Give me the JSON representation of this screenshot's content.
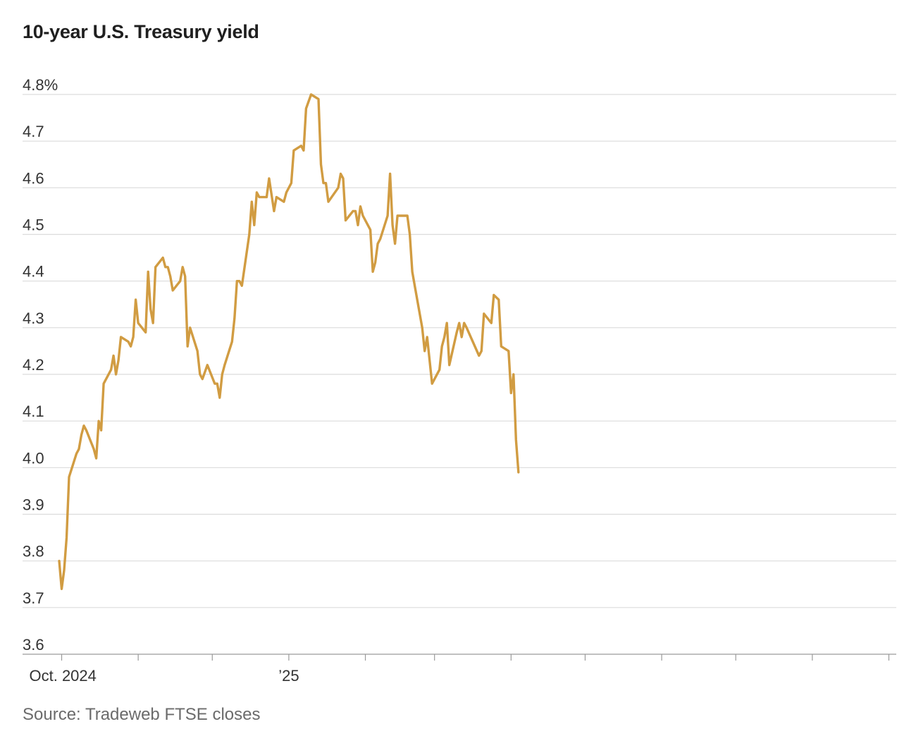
{
  "title": "10-year U.S. Treasury yield",
  "source": "Source: Tradeweb FTSE closes",
  "colors": {
    "line": "#D19C42",
    "grid": "#dcdcdc",
    "axis": "#9a9a9a",
    "text": "#333333",
    "source_text": "#6b6b6b"
  },
  "chart_data": {
    "type": "line",
    "title": "10-year U.S. Treasury yield",
    "ylabel": "",
    "xlabel": "",
    "ylim": [
      3.6,
      4.8
    ],
    "y_ticks": [
      "4.8%",
      "4.7",
      "4.6",
      "4.5",
      "4.4",
      "4.3",
      "4.2",
      "4.1",
      "4.0",
      "3.9",
      "3.8",
      "3.7",
      "3.6"
    ],
    "y_tick_values": [
      4.8,
      4.7,
      4.6,
      4.5,
      4.4,
      4.3,
      4.2,
      4.1,
      4.0,
      3.9,
      3.8,
      3.7,
      3.6
    ],
    "x_range": [
      "2024-09-30",
      "2025-09-04"
    ],
    "x_tick_labels": [
      {
        "date": "2024-10-01",
        "label": "Oct. 2024"
      },
      {
        "date": "2024-11-01",
        "label": ""
      },
      {
        "date": "2024-12-01",
        "label": ""
      },
      {
        "date": "2025-01-01",
        "label": "’25"
      },
      {
        "date": "2025-02-01",
        "label": ""
      },
      {
        "date": "2025-03-01",
        "label": ""
      },
      {
        "date": "2025-04-01",
        "label": ""
      },
      {
        "date": "2025-05-01",
        "label": ""
      },
      {
        "date": "2025-06-01",
        "label": ""
      },
      {
        "date": "2025-07-01",
        "label": ""
      },
      {
        "date": "2025-08-01",
        "label": ""
      },
      {
        "date": "2025-09-01",
        "label": ""
      }
    ],
    "grid": true,
    "legend": "none",
    "series": [
      {
        "points": [
          [
            "2024-09-30",
            3.8
          ],
          [
            "2024-10-01",
            3.74
          ],
          [
            "2024-10-02",
            3.78
          ],
          [
            "2024-10-03",
            3.85
          ],
          [
            "2024-10-04",
            3.98
          ],
          [
            "2024-10-07",
            4.03
          ],
          [
            "2024-10-08",
            4.04
          ],
          [
            "2024-10-09",
            4.07
          ],
          [
            "2024-10-10",
            4.09
          ],
          [
            "2024-10-11",
            4.08
          ],
          [
            "2024-10-14",
            4.04
          ],
          [
            "2024-10-15",
            4.02
          ],
          [
            "2024-10-16",
            4.1
          ],
          [
            "2024-10-17",
            4.08
          ],
          [
            "2024-10-18",
            4.18
          ],
          [
            "2024-10-21",
            4.21
          ],
          [
            "2024-10-22",
            4.24
          ],
          [
            "2024-10-23",
            4.2
          ],
          [
            "2024-10-24",
            4.23
          ],
          [
            "2024-10-25",
            4.28
          ],
          [
            "2024-10-28",
            4.27
          ],
          [
            "2024-10-29",
            4.26
          ],
          [
            "2024-10-30",
            4.28
          ],
          [
            "2024-10-31",
            4.36
          ],
          [
            "2024-11-01",
            4.31
          ],
          [
            "2024-11-04",
            4.29
          ],
          [
            "2024-11-05",
            4.42
          ],
          [
            "2024-11-06",
            4.34
          ],
          [
            "2024-11-07",
            4.31
          ],
          [
            "2024-11-08",
            4.43
          ],
          [
            "2024-11-11",
            4.45
          ],
          [
            "2024-11-12",
            4.43
          ],
          [
            "2024-11-13",
            4.43
          ],
          [
            "2024-11-14",
            4.41
          ],
          [
            "2024-11-15",
            4.38
          ],
          [
            "2024-11-18",
            4.4
          ],
          [
            "2024-11-19",
            4.43
          ],
          [
            "2024-11-20",
            4.41
          ],
          [
            "2024-11-21",
            4.26
          ],
          [
            "2024-11-22",
            4.3
          ],
          [
            "2024-11-25",
            4.25
          ],
          [
            "2024-11-26",
            4.2
          ],
          [
            "2024-11-27",
            4.19
          ],
          [
            "2024-11-29",
            4.22
          ],
          [
            "2024-12-02",
            4.18
          ],
          [
            "2024-12-03",
            4.18
          ],
          [
            "2024-12-04",
            4.15
          ],
          [
            "2024-12-05",
            4.2
          ],
          [
            "2024-12-06",
            4.22
          ],
          [
            "2024-12-09",
            4.27
          ],
          [
            "2024-12-10",
            4.32
          ],
          [
            "2024-12-11",
            4.4
          ],
          [
            "2024-12-12",
            4.4
          ],
          [
            "2024-12-13",
            4.39
          ],
          [
            "2024-12-16",
            4.5
          ],
          [
            "2024-12-17",
            4.57
          ],
          [
            "2024-12-18",
            4.52
          ],
          [
            "2024-12-19",
            4.59
          ],
          [
            "2024-12-20",
            4.58
          ],
          [
            "2024-12-23",
            4.58
          ],
          [
            "2024-12-24",
            4.62
          ],
          [
            "2024-12-26",
            4.55
          ],
          [
            "2024-12-27",
            4.58
          ],
          [
            "2024-12-30",
            4.57
          ],
          [
            "2024-12-31",
            4.59
          ],
          [
            "2025-01-02",
            4.61
          ],
          [
            "2025-01-03",
            4.68
          ],
          [
            "2025-01-06",
            4.69
          ],
          [
            "2025-01-07",
            4.68
          ],
          [
            "2025-01-08",
            4.77
          ],
          [
            "2025-01-10",
            4.8
          ],
          [
            "2025-01-13",
            4.79
          ],
          [
            "2025-01-14",
            4.65
          ],
          [
            "2025-01-15",
            4.61
          ],
          [
            "2025-01-16",
            4.61
          ],
          [
            "2025-01-17",
            4.57
          ],
          [
            "2025-01-21",
            4.6
          ],
          [
            "2025-01-22",
            4.63
          ],
          [
            "2025-01-23",
            4.62
          ],
          [
            "2025-01-24",
            4.53
          ],
          [
            "2025-01-27",
            4.55
          ],
          [
            "2025-01-28",
            4.55
          ],
          [
            "2025-01-29",
            4.52
          ],
          [
            "2025-01-30",
            4.56
          ],
          [
            "2025-01-31",
            4.54
          ],
          [
            "2025-02-03",
            4.51
          ],
          [
            "2025-02-04",
            4.42
          ],
          [
            "2025-02-05",
            4.44
          ],
          [
            "2025-02-06",
            4.48
          ],
          [
            "2025-02-07",
            4.49
          ],
          [
            "2025-02-10",
            4.54
          ],
          [
            "2025-02-11",
            4.63
          ],
          [
            "2025-02-12",
            4.52
          ],
          [
            "2025-02-13",
            4.48
          ],
          [
            "2025-02-14",
            4.54
          ],
          [
            "2025-02-18",
            4.54
          ],
          [
            "2025-02-19",
            4.5
          ],
          [
            "2025-02-20",
            4.42
          ],
          [
            "2025-02-21",
            4.39
          ],
          [
            "2025-02-24",
            4.3
          ],
          [
            "2025-02-25",
            4.25
          ],
          [
            "2025-02-26",
            4.28
          ],
          [
            "2025-02-27",
            4.23
          ],
          [
            "2025-02-28",
            4.18
          ],
          [
            "2025-03-03",
            4.21
          ],
          [
            "2025-03-04",
            4.26
          ],
          [
            "2025-03-05",
            4.28
          ],
          [
            "2025-03-06",
            4.31
          ],
          [
            "2025-03-07",
            4.22
          ],
          [
            "2025-03-10",
            4.29
          ],
          [
            "2025-03-11",
            4.31
          ],
          [
            "2025-03-12",
            4.28
          ],
          [
            "2025-03-13",
            4.31
          ],
          [
            "2025-03-14",
            4.3
          ],
          [
            "2025-03-19",
            4.24
          ],
          [
            "2025-03-20",
            4.25
          ],
          [
            "2025-03-21",
            4.33
          ],
          [
            "2025-03-24",
            4.31
          ],
          [
            "2025-03-25",
            4.37
          ],
          [
            "2025-03-27",
            4.36
          ],
          [
            "2025-03-28",
            4.26
          ],
          [
            "2025-03-31",
            4.25
          ],
          [
            "2025-04-01",
            4.16
          ],
          [
            "2025-04-02",
            4.2
          ],
          [
            "2025-04-03",
            4.06
          ],
          [
            "2025-04-04",
            3.99
          ]
        ]
      }
    ]
  }
}
